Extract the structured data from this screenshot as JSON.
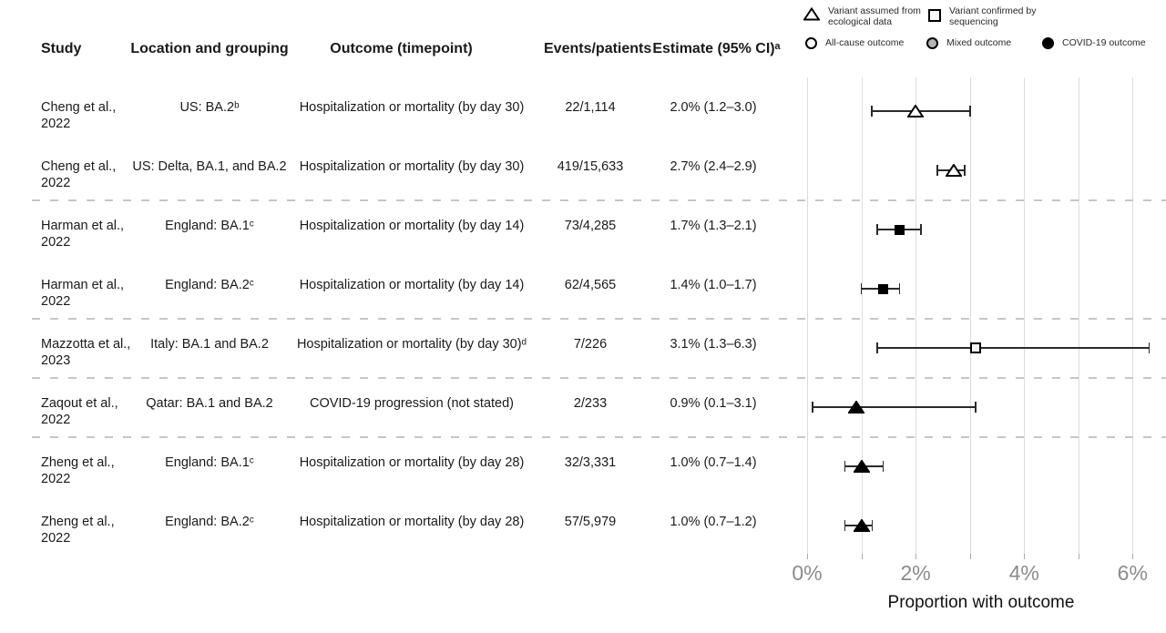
{
  "table": {
    "columns": [
      "Study",
      "Location and grouping",
      "Outcome (timepoint)",
      "Events/patients",
      "Estimate (95% CI)ᵃ"
    ]
  },
  "legend": {
    "items": [
      {
        "icon": "triangle-open",
        "line1": "Variant assumed from",
        "line2": "ecological data"
      },
      {
        "icon": "square-open",
        "line1": "Variant confirmed by",
        "line2": "sequencing"
      },
      {
        "icon": "circle-open",
        "line1": "All-cause outcome"
      },
      {
        "icon": "circle-mixed",
        "line1": "Mixed outcome"
      },
      {
        "icon": "circle-filled",
        "line1": "COVID-19 outcome"
      }
    ]
  },
  "colors": {
    "text": "#1a1a1a",
    "tick_label": "#8c8c8c",
    "gridline": "#dcdcdc",
    "separator": "#c6c6c6",
    "marker": "#000000",
    "mixed_fill": "#b5b5b5"
  },
  "chart_data": {
    "type": "forest",
    "xlabel": "Proportion with outcome",
    "x_ticks": [
      "0%",
      "2%",
      "4%",
      "6%"
    ],
    "x_tick_values": [
      0,
      2,
      4,
      6
    ],
    "gridline_values": [
      0,
      1,
      2,
      3,
      4,
      5,
      6
    ],
    "xlim": [
      0,
      6.6
    ],
    "rows": [
      {
        "study": "Cheng et al.,",
        "year": "2022",
        "group": "cheng",
        "location": "US: BA.2ᵇ",
        "outcome": "Hospitalization or mortality (by day 30)",
        "events": "22/1,114",
        "estimate_label": "2.0% (1.2–3.0)",
        "estimate": 2.0,
        "ci_low": 1.2,
        "ci_high": 3.0,
        "marker": "triangle-open"
      },
      {
        "study": "Cheng et al.,",
        "year": "2022",
        "group": "cheng",
        "location": "US: Delta, BA.1, and BA.2",
        "outcome": "Hospitalization or mortality (by day 30)",
        "events": "419/15,633",
        "estimate_label": "2.7% (2.4–2.9)",
        "estimate": 2.7,
        "ci_low": 2.4,
        "ci_high": 2.9,
        "marker": "triangle-open"
      },
      {
        "study": "Harman et al.,",
        "year": "2022",
        "group": "harman",
        "location": "England: BA.1ᶜ",
        "outcome": "Hospitalization or mortality (by day 14)",
        "events": "73/4,285",
        "estimate_label": "1.7% (1.3–2.1)",
        "estimate": 1.7,
        "ci_low": 1.3,
        "ci_high": 2.1,
        "marker": "square-filled"
      },
      {
        "study": "Harman et al.,",
        "year": "2022",
        "group": "harman",
        "location": "England: BA.2ᶜ",
        "outcome": "Hospitalization or mortality (by day 14)",
        "events": "62/4,565",
        "estimate_label": "1.4% (1.0–1.7)",
        "estimate": 1.4,
        "ci_low": 1.0,
        "ci_high": 1.7,
        "marker": "square-filled"
      },
      {
        "study": "Mazzotta et al.,",
        "year": "2023",
        "group": "mazzotta",
        "location": "Italy: BA.1 and BA.2",
        "outcome": "Hospitalization or mortality (by day 30)ᵈ",
        "events": "7/226",
        "estimate_label": "3.1% (1.3–6.3)",
        "estimate": 3.1,
        "ci_low": 1.3,
        "ci_high": 6.3,
        "marker": "square-open"
      },
      {
        "study": "Zaqout et al.,",
        "year": "2022",
        "group": "zaqout",
        "location": "Qatar: BA.1 and BA.2",
        "outcome": "COVID-19 progression (not stated)",
        "events": "2/233",
        "estimate_label": "0.9% (0.1–3.1)",
        "estimate": 0.9,
        "ci_low": 0.1,
        "ci_high": 3.1,
        "marker": "triangle-filled"
      },
      {
        "study": "Zheng et al.,",
        "year": "2022",
        "group": "zheng",
        "location": "England: BA.1ᶜ",
        "outcome": "Hospitalization or mortality (by day 28)",
        "events": "32/3,331",
        "estimate_label": "1.0% (0.7–1.4)",
        "estimate": 1.0,
        "ci_low": 0.7,
        "ci_high": 1.4,
        "marker": "triangle-filled"
      },
      {
        "study": "Zheng et al.,",
        "year": "2022",
        "group": "zheng",
        "location": "England: BA.2ᶜ",
        "outcome": "Hospitalization or mortality (by day 28)",
        "events": "57/5,979",
        "estimate_label": "1.0% (0.7–1.2)",
        "estimate": 1.0,
        "ci_low": 0.7,
        "ci_high": 1.2,
        "marker": "triangle-filled"
      }
    ]
  }
}
